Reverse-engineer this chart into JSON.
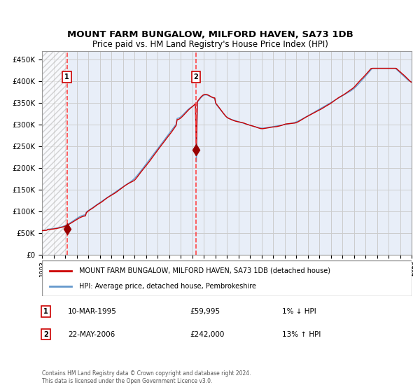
{
  "title1": "MOUNT FARM BUNGALOW, MILFORD HAVEN, SA73 1DB",
  "title2": "Price paid vs. HM Land Registry's House Price Index (HPI)",
  "legend_line1": "MOUNT FARM BUNGALOW, MILFORD HAVEN, SA73 1DB (detached house)",
  "legend_line2": "HPI: Average price, detached house, Pembrokeshire",
  "sale1_date": "10-MAR-1995",
  "sale1_price": 59995,
  "sale1_pct": "1% ↓ HPI",
  "sale2_date": "22-MAY-2006",
  "sale2_price": 242000,
  "sale2_pct": "13% ↑ HPI",
  "footer": "Contains HM Land Registry data © Crown copyright and database right 2024.\nThis data is licensed under the Open Government Licence v3.0.",
  "hpi_color": "#6699cc",
  "price_color": "#cc0000",
  "sale_marker_color": "#990000",
  "vline_color": "#ff4444",
  "hatch_color": "#dddddd",
  "grid_color": "#cccccc",
  "bg_color": "#e8eef8",
  "ylim": [
    0,
    470000
  ],
  "yticks": [
    0,
    50000,
    100000,
    150000,
    200000,
    250000,
    300000,
    350000,
    400000,
    450000
  ]
}
